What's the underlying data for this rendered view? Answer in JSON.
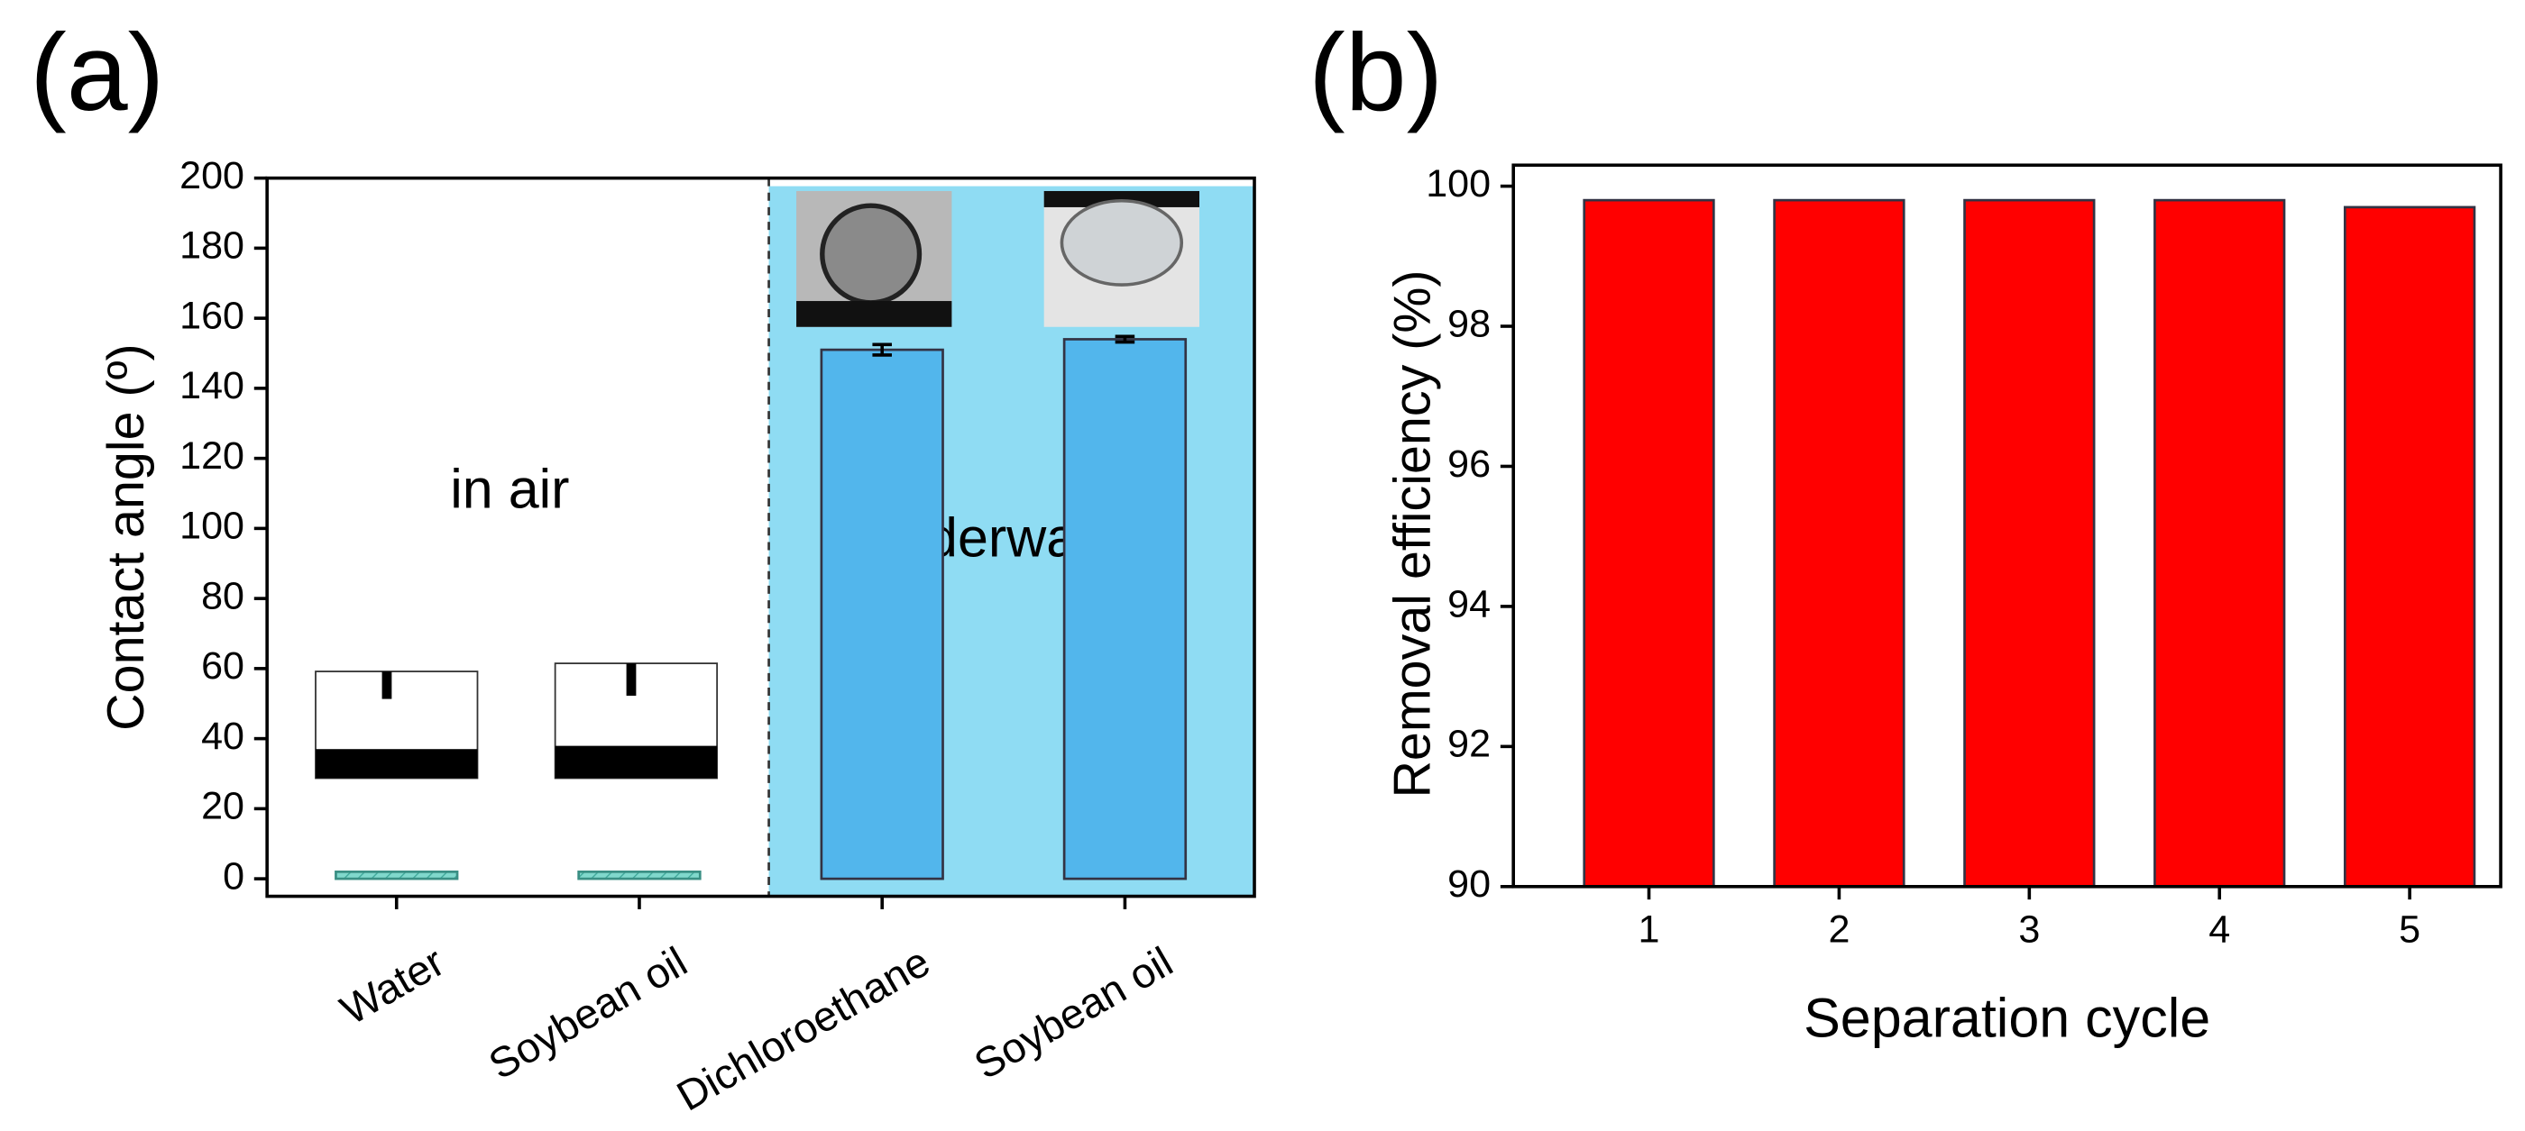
{
  "chart_data": [
    {
      "type": "bar",
      "panel_label": "(a)",
      "ylabel": "Contact angle (º)",
      "categories": [
        "Water",
        "Soybean oil",
        "Dichloroethane",
        "Soybean oil"
      ],
      "values": [
        2,
        2,
        151,
        154
      ],
      "errors": [
        null,
        null,
        1.5,
        0.8
      ],
      "colors": [
        "#80d8cc",
        "#80d8cc",
        "#52b6ec",
        "#52b6ec"
      ],
      "annotations": [
        "in air",
        "underwater"
      ],
      "ylim": [
        -5,
        200
      ],
      "yticks": [
        0,
        20,
        40,
        60,
        80,
        100,
        120,
        140,
        160,
        180,
        200
      ]
    },
    {
      "type": "bar",
      "panel_label": "(b)",
      "xlabel": "Separation cycle",
      "ylabel": "Removal efficiency (%)",
      "categories": [
        "1",
        "2",
        "3",
        "4",
        "5"
      ],
      "values": [
        99.8,
        99.8,
        99.8,
        99.8,
        99.7
      ],
      "color": "#ff0000",
      "ylim": [
        90,
        100.3
      ],
      "yticks": [
        90,
        92,
        94,
        96,
        98,
        100
      ]
    }
  ]
}
